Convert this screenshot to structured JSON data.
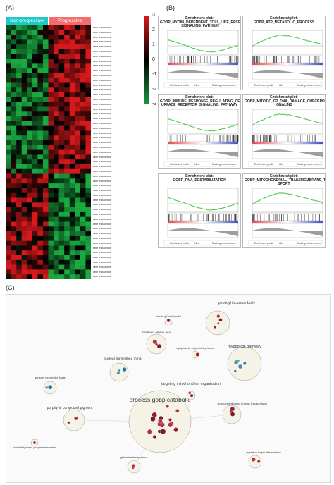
{
  "panels": {
    "a": "(A)",
    "b": "(B)",
    "c": "(C)"
  },
  "heatmap": {
    "groups": [
      {
        "label": "Non-progressive",
        "color": "#1ec9c9",
        "columns": 8
      },
      {
        "label": "Progressive",
        "color": "#f26d6d",
        "columns": 8
      }
    ],
    "rows": 53,
    "up_rows": 31,
    "row_label_prefix": "GENE|ENSG00000",
    "colorbar": {
      "ticks": [
        "3",
        "2",
        "1",
        "0",
        "-1",
        "-2",
        "-3"
      ],
      "colors": [
        "#d7191c",
        "#000000",
        "#1a9641"
      ]
    }
  },
  "gsea": [
    {
      "title": "Enrichment plot:\nGOBP_MYD88_DEPENDENT_TOLL_LIKE_RECEPTOR\n_SIGNALING_PATHWAY",
      "shape": "valley",
      "legend": [
        "Enrichment profile",
        "Hits",
        "Ranking metric scores"
      ]
    },
    {
      "title": "Enrichment plot:\nGOBP_ATP_METABOLIC_PROCESS",
      "shape": "peak",
      "legend": [
        "Enrichment profile",
        "Hits",
        "Ranking metric scores"
      ]
    },
    {
      "title": "Enrichment plot:\nGOBP_IMMUNE_RESPONSE_REGULATING_CELL_S\nURFACE_RECEPTOR_SIGNALING_PATHWAY",
      "shape": "valley",
      "legend": [
        "Enrichment profile",
        "Hits",
        "Ranking metric scores"
      ]
    },
    {
      "title": "Enrichment plot:\nGOBP_MITOTIC_G2_DNA_DAMAGE_CHECKPOINT_S\nIGNALING",
      "shape": "peak",
      "legend": [
        "Enrichment profile",
        "Hits",
        "Ranking metric scores"
      ]
    },
    {
      "title": "Enrichment plot: GOBP_RNA_DESTABILIZATION",
      "shape": "valley",
      "legend": [
        "Enrichment profile",
        "Hits",
        "Ranking metric scores"
      ]
    },
    {
      "title": "Enrichment plot:\nGOBP_MITOCHONDRIAL_TRANSMEMBRANE_TRAN\nSPORT",
      "shape": "peak",
      "legend": [
        "Enrichment profile",
        "Hits",
        "Ranking metric scores"
      ]
    }
  ],
  "network": {
    "clusters": [
      {
        "label": "process gobp catabolic",
        "size": "xlarge",
        "n": 18
      },
      {
        "label": "peptidyl inclusion body",
        "size": "medium",
        "n": 4
      },
      {
        "label": "myd88 toll pathway",
        "size": "large",
        "n": 5
      },
      {
        "label": "targeting mitochondrion organization",
        "size": "small",
        "n": 2
      },
      {
        "label": "transmembrane import intracellular",
        "size": "medium",
        "n": 3
      },
      {
        "label": "porphyrin compound pigment",
        "size": "medium",
        "n": 3
      },
      {
        "label": "nuclear transcribed mrna",
        "size": "medium",
        "n": 3
      },
      {
        "label": "modified amino acid",
        "size": "small",
        "n": 3
      },
      {
        "label": "cytoplasmic sequestering factor",
        "size": "tiny",
        "n": 1
      },
      {
        "label": "mitotic g2 checkpoint",
        "size": "tiny",
        "n": 1
      },
      {
        "label": "sensory perception taste",
        "size": "small",
        "n": 2
      },
      {
        "label": "glutamine family amino",
        "size": "small",
        "n": 2
      },
      {
        "label": "regulation helper differentiation",
        "size": "small",
        "n": 2
      },
      {
        "label": "phosphatidylinositol phosphate biosynthetic",
        "size": "tiny",
        "n": 1
      }
    ]
  }
}
